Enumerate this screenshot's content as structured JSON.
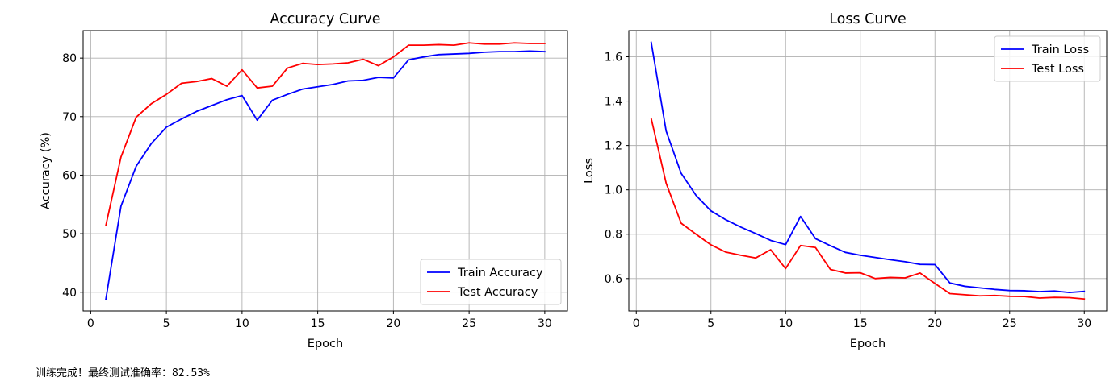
{
  "chart_data": [
    {
      "type": "line",
      "title": "Accuracy Curve",
      "xlabel": "Epoch",
      "ylabel": "Accuracy (%)",
      "xlim": [
        -0.5,
        31.5
      ],
      "ylim": [
        36.8,
        84.7
      ],
      "xticks": [
        0,
        5,
        10,
        15,
        20,
        25,
        30
      ],
      "yticks": [
        40,
        50,
        60,
        70,
        80
      ],
      "grid": true,
      "legend": "lower-right",
      "x": [
        1,
        2,
        3,
        4,
        5,
        6,
        7,
        8,
        9,
        10,
        11,
        12,
        13,
        14,
        15,
        16,
        17,
        18,
        19,
        20,
        21,
        22,
        23,
        24,
        25,
        26,
        27,
        28,
        29,
        30
      ],
      "series": [
        {
          "name": "Train Accuracy",
          "color": "#0000ff",
          "values": [
            38.8,
            54.7,
            61.5,
            65.4,
            68.2,
            69.6,
            70.9,
            71.9,
            72.9,
            73.6,
            69.4,
            72.8,
            73.8,
            74.7,
            75.1,
            75.5,
            76.1,
            76.2,
            76.7,
            76.6,
            79.7,
            80.2,
            80.6,
            80.7,
            80.8,
            81.0,
            81.1,
            81.1,
            81.2,
            81.1
          ]
        },
        {
          "name": "Test Accuracy",
          "color": "#ff0000",
          "values": [
            51.4,
            63.1,
            69.9,
            72.2,
            73.8,
            75.7,
            76.0,
            76.5,
            75.2,
            78.0,
            74.9,
            75.2,
            78.3,
            79.1,
            78.9,
            79.0,
            79.2,
            79.8,
            78.7,
            80.2,
            82.2,
            82.2,
            82.3,
            82.2,
            82.6,
            82.4,
            82.4,
            82.6,
            82.5,
            82.5
          ]
        }
      ]
    },
    {
      "type": "line",
      "title": "Loss Curve",
      "xlabel": "Epoch",
      "ylabel": "Loss",
      "xlim": [
        -0.5,
        31.5
      ],
      "ylim": [
        0.454,
        1.718
      ],
      "xticks": [
        0,
        5,
        10,
        15,
        20,
        25,
        30
      ],
      "yticks": [
        0.6,
        0.8,
        1.0,
        1.2,
        1.4,
        1.6
      ],
      "grid": true,
      "legend": "upper-right",
      "x": [
        1,
        2,
        3,
        4,
        5,
        6,
        7,
        8,
        9,
        10,
        11,
        12,
        13,
        14,
        15,
        16,
        17,
        18,
        19,
        20,
        21,
        22,
        23,
        24,
        25,
        26,
        27,
        28,
        29,
        30
      ],
      "series": [
        {
          "name": "Train Loss",
          "color": "#0000ff",
          "values": [
            1.665,
            1.265,
            1.075,
            0.975,
            0.905,
            0.865,
            0.832,
            0.803,
            0.772,
            0.753,
            0.88,
            0.78,
            0.748,
            0.718,
            0.705,
            0.695,
            0.685,
            0.676,
            0.664,
            0.663,
            0.58,
            0.565,
            0.558,
            0.551,
            0.546,
            0.545,
            0.541,
            0.544,
            0.537,
            0.542
          ]
        },
        {
          "name": "Test Loss",
          "color": "#ff0000",
          "values": [
            1.322,
            1.03,
            0.85,
            0.8,
            0.752,
            0.719,
            0.705,
            0.693,
            0.73,
            0.645,
            0.749,
            0.74,
            0.641,
            0.625,
            0.626,
            0.6,
            0.605,
            0.603,
            0.625,
            0.578,
            0.532,
            0.527,
            0.522,
            0.524,
            0.52,
            0.519,
            0.512,
            0.515,
            0.514,
            0.508
          ]
        }
      ]
    }
  ],
  "output": {
    "text": "训练完成！最终测试准确率：82.53%"
  }
}
